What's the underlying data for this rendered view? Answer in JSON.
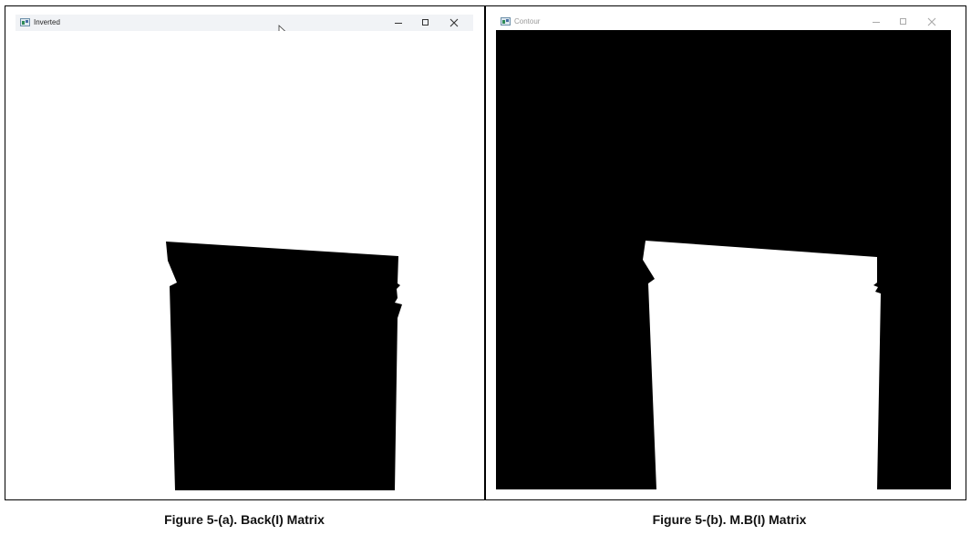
{
  "windows": [
    {
      "title": "Inverted",
      "background": "#ffffff",
      "shape_fill": "#000000",
      "caption": "Figure 5-(a). Back(I) Matrix"
    },
    {
      "title": "Contour",
      "background": "#000000",
      "shape_fill": "#ffffff",
      "caption": "Figure 5-(b). M.B(I) Matrix"
    }
  ],
  "icons": {
    "app": "app-icon",
    "minimize": "minimize-icon",
    "maximize": "maximize-icon",
    "close": "close-icon",
    "cursor": "mouse-cursor-icon"
  }
}
